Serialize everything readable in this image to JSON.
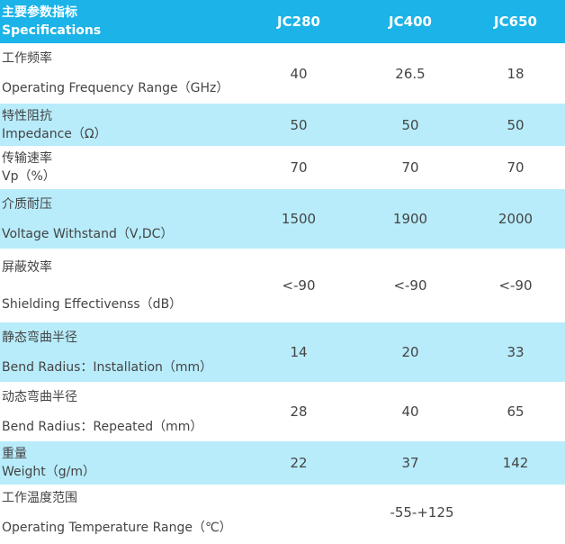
{
  "header": {
    "title_zh": "主要参数指标",
    "title_en": "Specifications",
    "models": [
      "JC280",
      "JC400",
      "JC650"
    ]
  },
  "rows": [
    {
      "zh": "工作频率",
      "en": "Operating Frequency Range（GHz）",
      "values": [
        "40",
        "26.5",
        "18"
      ]
    },
    {
      "zh": "特性阻抗",
      "en": "Impedance（Ω）",
      "values": [
        "50",
        "50",
        "50"
      ]
    },
    {
      "zh": "传输速率",
      "en": "Vp（%）",
      "values": [
        "70",
        "70",
        "70"
      ]
    },
    {
      "zh": "介质耐压",
      "en": "Voltage Withstand（V,DC）",
      "values": [
        "1500",
        "1900",
        "2000"
      ]
    },
    {
      "zh": "屏蔽效率",
      "en": "Shielding Effectivenss（dB）",
      "values": [
        "<-90",
        "<-90",
        "<-90"
      ]
    },
    {
      "zh": "静态弯曲半径",
      "en": "Bend Radius：Installation（mm）",
      "values": [
        "14",
        "20",
        "33"
      ]
    },
    {
      "zh": "动态弯曲半径",
      "en": "Bend Radius：Repeated（mm）",
      "values": [
        "28",
        "40",
        "65"
      ]
    },
    {
      "zh": "重量",
      "en": "Weight（g/m）",
      "values": [
        "22",
        "37",
        "142"
      ]
    },
    {
      "zh": "工作温度范围",
      "en": "Operating Temperature Range（℃）",
      "values": [
        "-55-+125"
      ]
    }
  ],
  "colors": {
    "header_bg": "#1bb3e8",
    "alt_row_bg": "#b8ecfb",
    "text": "#444444"
  }
}
